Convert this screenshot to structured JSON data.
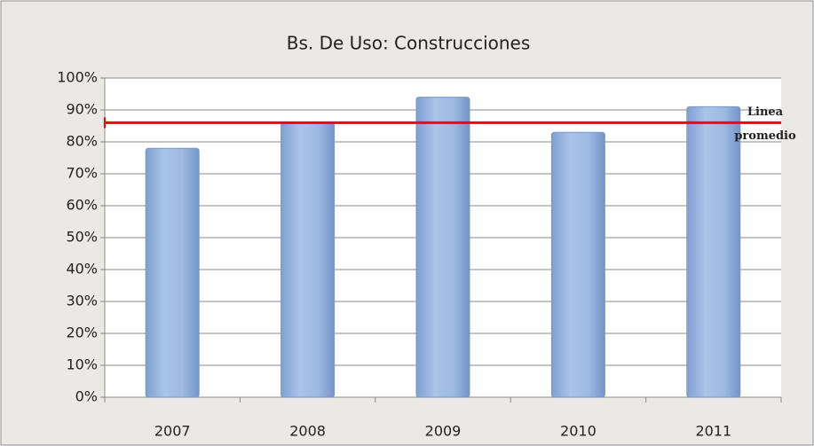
{
  "chart_data": {
    "type": "bar",
    "title": "Bs. De Uso: Construcciones",
    "categories": [
      "2007",
      "2008",
      "2009",
      "2010",
      "2011"
    ],
    "values": [
      78,
      86,
      94,
      83,
      91
    ],
    "color": "#95b3d7",
    "ylim": [
      0,
      100
    ],
    "yticks": [
      {
        "value": 0,
        "label": "0%"
      },
      {
        "value": 10,
        "label": "10%"
      },
      {
        "value": 20,
        "label": "20%"
      },
      {
        "value": 30,
        "label": "30%"
      },
      {
        "value": 40,
        "label": "40%"
      },
      {
        "value": 50,
        "label": "50%"
      },
      {
        "value": 60,
        "label": "60%"
      },
      {
        "value": 70,
        "label": "70%"
      },
      {
        "value": 80,
        "label": "80%"
      },
      {
        "value": 90,
        "label": "90%"
      },
      {
        "value": 100,
        "label": "100%"
      }
    ],
    "grid": true,
    "average_line": {
      "value": 86,
      "color": "#ff0000",
      "label": [
        "Linea",
        "promedio"
      ]
    }
  }
}
